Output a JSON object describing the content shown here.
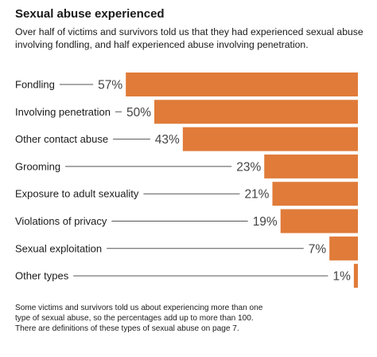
{
  "chart_data": {
    "type": "bar",
    "orientation": "horizontal",
    "title": "Sexual abuse experienced",
    "subtitle": "Over half of victims and survivors told us that they had experienced sexual abuse involving fondling, and half experienced abuse involving penetration.",
    "categories": [
      "Fondling",
      "Involving penetration",
      "Other contact abuse",
      "Grooming",
      "Exposure to adult sexuality",
      "Violations of privacy",
      "Sexual exploitation",
      "Other types"
    ],
    "values": [
      57,
      50,
      43,
      23,
      21,
      19,
      7,
      1
    ],
    "value_labels": [
      "57%",
      "50%",
      "43%",
      "23%",
      "21%",
      "19%",
      "7%",
      "1%"
    ],
    "xlim": [
      0,
      100
    ],
    "grid": false,
    "legend": "none",
    "bar_color": "#E07B39",
    "leader_color": "#555555"
  },
  "footnote": [
    "Some victims and survivors told us about experiencing more than one",
    "type of sexual abuse, so the percentages add up to more than 100.",
    "There are definitions of these types of sexual abuse on page 7."
  ]
}
